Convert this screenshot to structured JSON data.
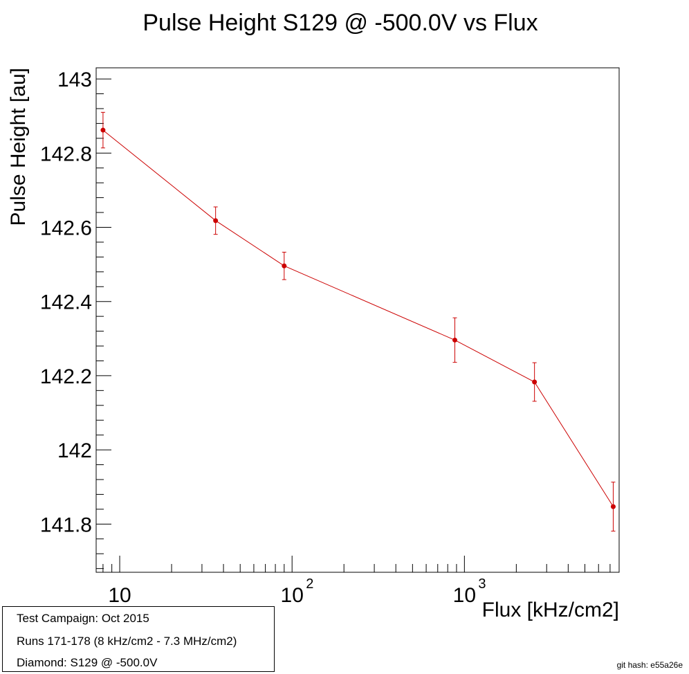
{
  "chart_data": {
    "type": "line",
    "title": "Pulse Height S129 @ -500.0V vs Flux",
    "xlabel": "Flux [kHz/cm2]",
    "ylabel": "Pulse Height [au]",
    "x_scale": "log",
    "xlim": [
      7.3,
      7900
    ],
    "ylim": [
      141.67,
      143.03
    ],
    "x_ticks": [
      {
        "value": 10,
        "base": "10",
        "exp": ""
      },
      {
        "value": 100,
        "base": "10",
        "exp": "2"
      },
      {
        "value": 1000,
        "base": "10",
        "exp": "3"
      }
    ],
    "y_ticks": [
      {
        "value": 141.8,
        "label": "141.8"
      },
      {
        "value": 142.0,
        "label": "142"
      },
      {
        "value": 142.2,
        "label": "142.2"
      },
      {
        "value": 142.4,
        "label": "142.4"
      },
      {
        "value": 142.6,
        "label": "142.6"
      },
      {
        "value": 142.8,
        "label": "142.8"
      },
      {
        "value": 143.0,
        "label": "143"
      }
    ],
    "grid": false,
    "series": [
      {
        "color": "#cc0000",
        "points": [
          {
            "x": 8.0,
            "y": 142.862,
            "err": 0.048
          },
          {
            "x": 36,
            "y": 142.618,
            "err": 0.037
          },
          {
            "x": 90,
            "y": 142.496,
            "err": 0.037
          },
          {
            "x": 880,
            "y": 142.296,
            "err": 0.06
          },
          {
            "x": 2550,
            "y": 142.183,
            "err": 0.052
          },
          {
            "x": 7300,
            "y": 141.847,
            "err": 0.066
          }
        ]
      }
    ]
  },
  "info": {
    "campaign": "Test Campaign: Oct 2015",
    "runs": "Runs 171-178 (8 kHz/cm2 - 7.3 MHz/cm2)",
    "diamond": "Diamond: S129 @ -500.0V"
  },
  "git_hash": "git hash: e55a26e"
}
